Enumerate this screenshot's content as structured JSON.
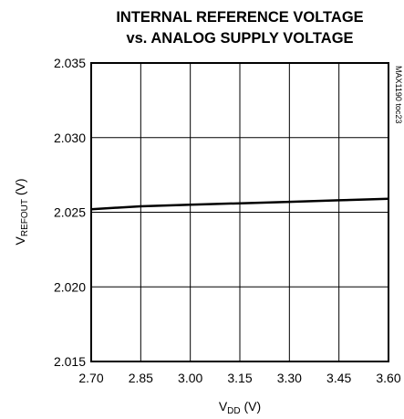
{
  "chart_data": {
    "type": "line",
    "title_line1": "INTERNAL REFERENCE VOLTAGE",
    "title_line2": "vs. ANALOG SUPPLY VOLTAGE",
    "xlabel_main": "V",
    "xlabel_sub": "DD",
    "xlabel_unit": " (V)",
    "ylabel_main": "V",
    "ylabel_sub": "REFOUT",
    "ylabel_unit": " (V)",
    "xlim": [
      2.7,
      3.6
    ],
    "ylim": [
      2.015,
      2.035
    ],
    "x_ticks": [
      "2.70",
      "2.85",
      "3.00",
      "3.15",
      "3.30",
      "3.45",
      "3.60"
    ],
    "y_ticks": [
      "2.035",
      "2.030",
      "2.025",
      "2.020",
      "2.015"
    ],
    "grid": true,
    "series": [
      {
        "x": [
          2.7,
          2.85,
          3.0,
          3.15,
          3.3,
          3.45,
          3.6
        ],
        "y": [
          2.0252,
          2.0254,
          2.0255,
          2.0256,
          2.0257,
          2.0258,
          2.0259
        ]
      }
    ],
    "side_note": "MAX1190 toc23"
  }
}
